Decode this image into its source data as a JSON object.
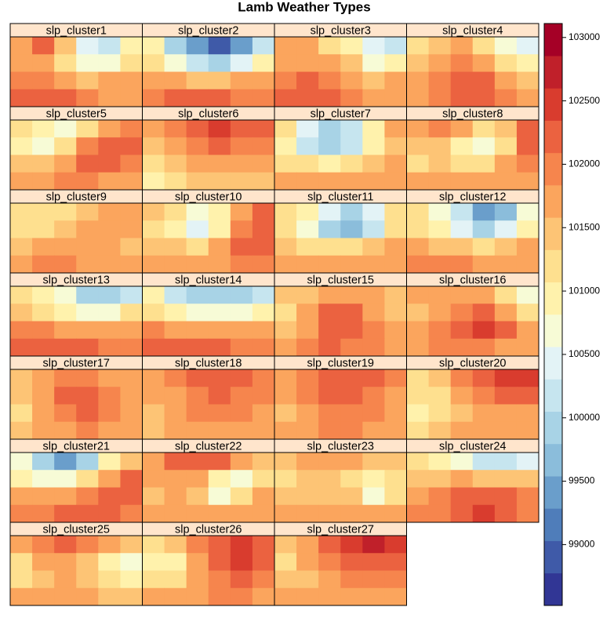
{
  "chart_data": {
    "type": "heatmap",
    "title": "Lamb Weather Types",
    "colorbar": {
      "lim": [
        98520,
        103110
      ],
      "ticks": [
        99000,
        99500,
        100000,
        100500,
        101000,
        101500,
        102000,
        102500,
        103000
      ],
      "colors": [
        "#313695",
        "#3F5AA8",
        "#4F7DBA",
        "#6A9ECB",
        "#8BBDDB",
        "#A8D3E6",
        "#C6E5EF",
        "#E3F3F6",
        "#F7FBD6",
        "#FFF2AC",
        "#FEE08F",
        "#FDC475",
        "#FBA55D",
        "#F6854D",
        "#EB6240",
        "#D93C2E",
        "#C0202A",
        "#A50026"
      ]
    },
    "panels": [
      {
        "name": "slp_cluster1",
        "values": [
          [
            101800,
            102100,
            101500,
            100500,
            100300,
            101000
          ],
          [
            101600,
            101700,
            101200,
            100600,
            100700,
            101300
          ],
          [
            101900,
            102000,
            101800,
            101500,
            101600,
            101800
          ],
          [
            102100,
            102200,
            102100,
            101900,
            101800,
            101700
          ]
        ]
      },
      {
        "name": "slp_cluster2",
        "values": [
          [
            101000,
            100000,
            99400,
            99000,
            99300,
            100300
          ],
          [
            101200,
            100800,
            100200,
            99900,
            100400,
            101000
          ],
          [
            101700,
            101600,
            101500,
            101500,
            101600,
            101800
          ],
          [
            102000,
            102100,
            102200,
            102100,
            102000,
            101900
          ]
        ]
      },
      {
        "name": "slp_cluster3",
        "values": [
          [
            101700,
            101600,
            101300,
            101000,
            100400,
            100200
          ],
          [
            101800,
            101800,
            101700,
            101400,
            100700,
            100900
          ],
          [
            102000,
            102100,
            102000,
            101800,
            101500,
            101600
          ],
          [
            102100,
            102200,
            102200,
            102000,
            101800,
            101700
          ]
        ]
      },
      {
        "name": "slp_cluster4",
        "values": [
          [
            101300,
            101500,
            101700,
            101300,
            100800,
            100400
          ],
          [
            101400,
            101700,
            102000,
            101800,
            101300,
            100900
          ],
          [
            101600,
            101900,
            102200,
            102300,
            101800,
            101500
          ],
          [
            101700,
            101900,
            102100,
            102100,
            101900,
            101700
          ]
        ]
      },
      {
        "name": "slp_cluster5",
        "values": [
          [
            101300,
            100900,
            100700,
            101200,
            101800,
            102000
          ],
          [
            101000,
            100800,
            101300,
            101900,
            102300,
            102200
          ],
          [
            101400,
            101500,
            101800,
            102100,
            102300,
            102000
          ],
          [
            101700,
            101800,
            101900,
            101900,
            101800,
            101700
          ]
        ]
      },
      {
        "name": "slp_cluster6",
        "values": [
          [
            101600,
            102000,
            102300,
            102400,
            102300,
            102100
          ],
          [
            101500,
            101800,
            102000,
            102100,
            102000,
            101900
          ],
          [
            101200,
            101400,
            101600,
            101700,
            101700,
            101600
          ],
          [
            101000,
            101200,
            101400,
            101500,
            101500,
            101400
          ]
        ]
      },
      {
        "name": "slp_cluster7",
        "values": [
          [
            101200,
            100400,
            100000,
            100200,
            101000,
            101600
          ],
          [
            101000,
            100300,
            99900,
            100100,
            100900,
            101500
          ],
          [
            101300,
            101100,
            101000,
            101200,
            101500,
            101700
          ],
          [
            101700,
            101800,
            101800,
            101800,
            101700,
            101600
          ]
        ]
      },
      {
        "name": "slp_cluster8",
        "values": [
          [
            101700,
            101900,
            101600,
            101100,
            101500,
            102200
          ],
          [
            101400,
            101500,
            101000,
            100700,
            101300,
            102100
          ],
          [
            101300,
            101400,
            101300,
            101200,
            101700,
            102000
          ],
          [
            101600,
            101700,
            101800,
            101800,
            101800,
            101700
          ]
        ]
      },
      {
        "name": "slp_cluster9",
        "values": [
          [
            101300,
            101200,
            101300,
            101500,
            101600,
            101600
          ],
          [
            101100,
            101200,
            101400,
            101600,
            101700,
            101700
          ],
          [
            101500,
            101600,
            101700,
            101700,
            101600,
            101500
          ],
          [
            101800,
            101900,
            101900,
            101800,
            101700,
            101600
          ]
        ]
      },
      {
        "name": "slp_cluster10",
        "values": [
          [
            101500,
            101100,
            100600,
            100900,
            101700,
            102200
          ],
          [
            101300,
            100900,
            100500,
            101000,
            101900,
            102300
          ],
          [
            101500,
            101400,
            101300,
            101600,
            102100,
            102200
          ],
          [
            101700,
            101700,
            101700,
            101800,
            101900,
            101900
          ]
        ]
      },
      {
        "name": "slp_cluster11",
        "values": [
          [
            101300,
            100900,
            100400,
            100000,
            100500,
            101300
          ],
          [
            101200,
            100800,
            100000,
            99700,
            100300,
            101200
          ],
          [
            101500,
            101300,
            101100,
            101100,
            101400,
            101700
          ],
          [
            101800,
            101800,
            101800,
            101800,
            101800,
            101700
          ]
        ]
      },
      {
        "name": "slp_cluster12",
        "values": [
          [
            101300,
            100700,
            100100,
            99500,
            99700,
            100600
          ],
          [
            101200,
            100900,
            100400,
            100000,
            100400,
            101000
          ],
          [
            101600,
            101500,
            101400,
            101300,
            101500,
            101700
          ],
          [
            101900,
            101900,
            101900,
            101800,
            101800,
            101700
          ]
        ]
      },
      {
        "name": "slp_cluster13",
        "values": [
          [
            101300,
            101000,
            100600,
            100000,
            99800,
            100300
          ],
          [
            101500,
            101300,
            101000,
            100700,
            100800,
            101100
          ],
          [
            101900,
            101900,
            101800,
            101700,
            101700,
            101700
          ],
          [
            102200,
            102300,
            102200,
            102100,
            102000,
            101900
          ]
        ]
      },
      {
        "name": "slp_cluster14",
        "values": [
          [
            101000,
            100300,
            100000,
            99900,
            99800,
            100100
          ],
          [
            101300,
            101000,
            100700,
            100600,
            100600,
            100900
          ],
          [
            101900,
            101800,
            101700,
            101600,
            101600,
            101600
          ],
          [
            102300,
            102300,
            102200,
            102100,
            102000,
            101900
          ]
        ]
      },
      {
        "name": "slp_cluster15",
        "values": [
          [
            101400,
            101500,
            101700,
            101800,
            101600,
            101400
          ],
          [
            101300,
            101600,
            102100,
            102200,
            101800,
            101500
          ],
          [
            101500,
            101800,
            102300,
            102200,
            101900,
            101700
          ],
          [
            101700,
            101900,
            102100,
            102000,
            101900,
            101800
          ]
        ]
      },
      {
        "name": "slp_cluster16",
        "values": [
          [
            101600,
            101600,
            101600,
            101600,
            101200,
            100800
          ],
          [
            101500,
            101700,
            101900,
            102100,
            101800,
            101300
          ],
          [
            101600,
            101900,
            102200,
            102400,
            102100,
            101700
          ],
          [
            101800,
            101900,
            102000,
            101900,
            101800,
            101700
          ]
        ]
      },
      {
        "name": "slp_cluster17",
        "values": [
          [
            101500,
            101700,
            101900,
            102000,
            101800,
            101600
          ],
          [
            101400,
            101700,
            102100,
            102300,
            102000,
            101700
          ],
          [
            101300,
            101600,
            102000,
            102200,
            101900,
            101700
          ],
          [
            101400,
            101600,
            101800,
            101900,
            101800,
            101700
          ]
        ]
      },
      {
        "name": "slp_cluster18",
        "values": [
          [
            101800,
            101900,
            102100,
            102200,
            102100,
            102000
          ],
          [
            101600,
            101800,
            102000,
            102100,
            102000,
            101900
          ],
          [
            101400,
            101700,
            101900,
            102000,
            101900,
            101800
          ],
          [
            101500,
            101700,
            101800,
            101800,
            101800,
            101700
          ]
        ]
      },
      {
        "name": "slp_cluster19",
        "values": [
          [
            101700,
            101900,
            102100,
            102200,
            102100,
            101900
          ],
          [
            101600,
            101900,
            102100,
            102200,
            102000,
            101800
          ],
          [
            101500,
            101800,
            102000,
            102000,
            101900,
            101800
          ],
          [
            101600,
            101800,
            101900,
            101900,
            101800,
            101700
          ]
        ]
      },
      {
        "name": "slp_cluster20",
        "values": [
          [
            101300,
            101500,
            101900,
            102300,
            102500,
            102400
          ],
          [
            101100,
            101300,
            101700,
            102000,
            102200,
            102100
          ],
          [
            101000,
            101200,
            101500,
            101700,
            101800,
            101800
          ],
          [
            101300,
            101400,
            101600,
            101700,
            101700,
            101700
          ]
        ]
      },
      {
        "name": "slp_cluster21",
        "values": [
          [
            100600,
            99900,
            99400,
            100000,
            101000,
            101500
          ],
          [
            101000,
            100800,
            100800,
            101200,
            101800,
            102100
          ],
          [
            101600,
            101700,
            101800,
            102000,
            102200,
            102300
          ],
          [
            101900,
            102000,
            102100,
            102100,
            102100,
            102000
          ]
        ]
      },
      {
        "name": "slp_cluster22",
        "values": [
          [
            101800,
            102200,
            102300,
            102100,
            101700,
            101500
          ],
          [
            101600,
            101700,
            101600,
            100900,
            100700,
            101300
          ],
          [
            101500,
            101600,
            101400,
            100800,
            101100,
            101600
          ],
          [
            101700,
            101800,
            101800,
            101700,
            101700,
            101700
          ]
        ]
      },
      {
        "name": "slp_cluster23",
        "values": [
          [
            101500,
            101700,
            101800,
            101700,
            101400,
            101500
          ],
          [
            101300,
            101500,
            101500,
            101300,
            100900,
            101200
          ],
          [
            101400,
            101500,
            101500,
            101400,
            100800,
            101300
          ],
          [
            101700,
            101700,
            101700,
            101700,
            101600,
            101600
          ]
        ]
      },
      {
        "name": "slp_cluster24",
        "values": [
          [
            101200,
            101000,
            100600,
            100300,
            100200,
            100500
          ],
          [
            101500,
            101500,
            101600,
            101500,
            101400,
            101400
          ],
          [
            101800,
            101900,
            102100,
            102300,
            102300,
            102000
          ],
          [
            101900,
            102000,
            102200,
            102400,
            102200,
            101900
          ]
        ]
      },
      {
        "name": "slp_cluster25",
        "values": [
          [
            101600,
            102000,
            102200,
            101900,
            101600,
            101400
          ],
          [
            101300,
            101600,
            101700,
            101400,
            101000,
            100800
          ],
          [
            101300,
            101500,
            101600,
            101500,
            101300,
            101000
          ],
          [
            101600,
            101700,
            101800,
            101700,
            101500,
            101400
          ]
        ]
      },
      {
        "name": "slp_cluster26",
        "values": [
          [
            101300,
            101500,
            101900,
            102300,
            102400,
            102200
          ],
          [
            100900,
            101000,
            101600,
            102200,
            102400,
            102200
          ],
          [
            101200,
            101300,
            101700,
            102000,
            102100,
            102000
          ],
          [
            101600,
            101600,
            101800,
            101900,
            101900,
            101800
          ]
        ]
      },
      {
        "name": "slp_cluster27",
        "values": [
          [
            101500,
            101800,
            102100,
            102400,
            102600,
            102400
          ],
          [
            101300,
            101600,
            101900,
            102200,
            102300,
            102200
          ],
          [
            101400,
            101500,
            101700,
            101900,
            102000,
            101900
          ],
          [
            101600,
            101700,
            101800,
            101800,
            101800,
            101800
          ]
        ]
      }
    ]
  }
}
